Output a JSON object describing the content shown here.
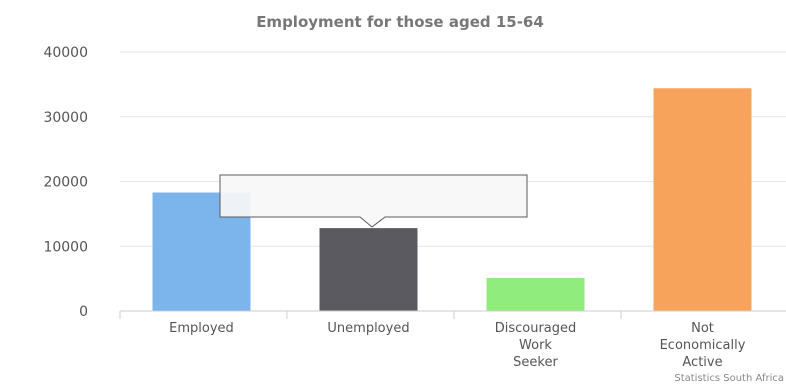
{
  "chart_data": {
    "type": "bar",
    "title": "Employment for those aged 15-64",
    "categories": [
      "Employed",
      "Unemployed",
      "Discouraged Work Seeker",
      "Not Economically Active"
    ],
    "category_lines": [
      [
        "Employed"
      ],
      [
        "Unemployed"
      ],
      [
        "Discouraged",
        "Work",
        "Seeker"
      ],
      [
        "Not",
        "Economically",
        "Active"
      ]
    ],
    "values": [
      18300,
      12800,
      5100,
      34400
    ],
    "colors": [
      "#7cb5ec",
      "#5b5a60",
      "#90ed7d",
      "#f7a35c"
    ],
    "ylim": [
      0,
      40000
    ],
    "yticks": [
      "0",
      "10000",
      "20000",
      "30000",
      "40000"
    ],
    "grid": true,
    "legend": "none"
  },
  "credit": "Statistics South Africa"
}
